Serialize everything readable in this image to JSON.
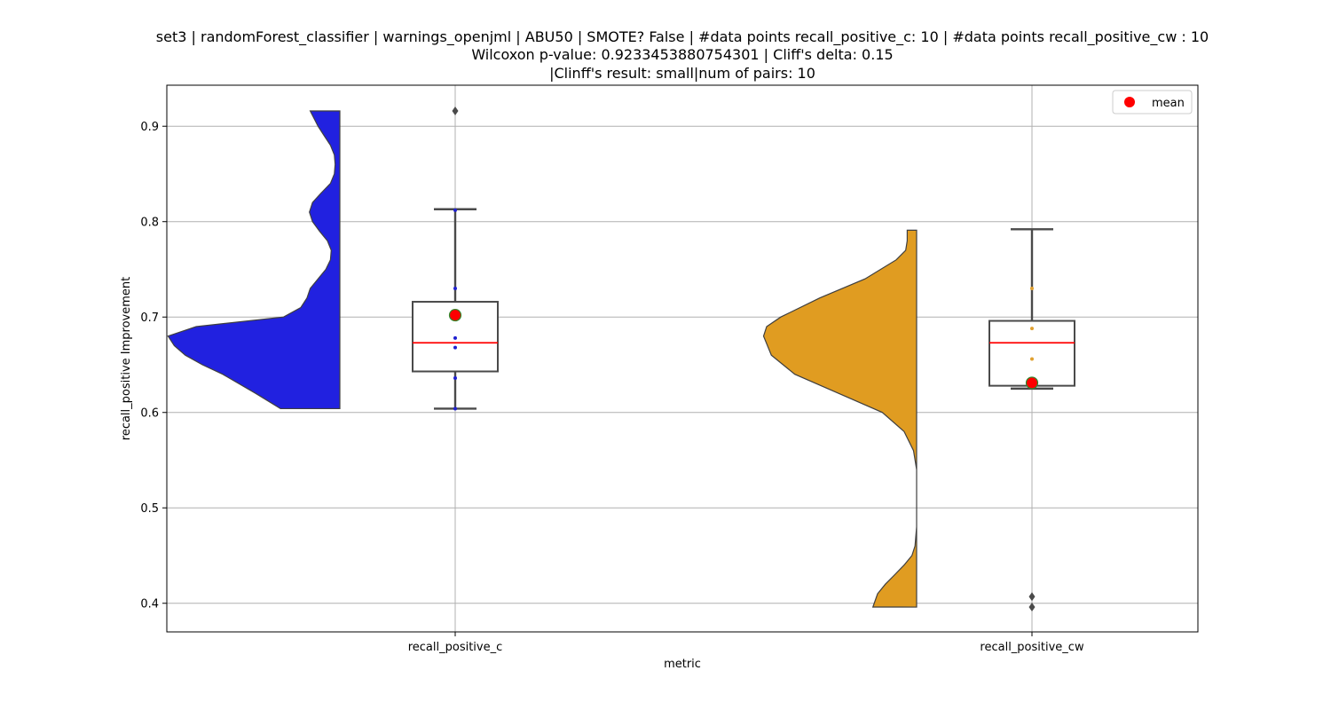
{
  "chart_data": {
    "type": "violin-box",
    "title_lines": [
      "set3 | randomForest_classifier | warnings_openjml | ABU50 | SMOTE? False | #data points recall_positive_c: 10 | #data points recall_positive_cw : 10",
      "Wilcoxon p-value: 0.9233453880754301 | Cliff's delta: 0.15",
      "|Clinff's result: small|num of pairs: 10"
    ],
    "xlabel": "metric",
    "ylabel": "recall_positive Improvement",
    "categories": [
      "recall_positive_c",
      "recall_positive_cw"
    ],
    "ylim": [
      0.37,
      0.943
    ],
    "yticks": [
      0.4,
      0.5,
      0.6,
      0.7,
      0.8,
      0.9
    ],
    "grid": true,
    "legend": {
      "position": "top-right",
      "entries": [
        {
          "label": "mean",
          "color": "#ff0000"
        }
      ]
    },
    "series": [
      {
        "category": "recall_positive_c",
        "violin_color": "#2121e0",
        "point_color": "#2020d0",
        "violin_min": 0.604,
        "violin_max": 0.916,
        "violin_profile": [
          [
            0.604,
            0.38
          ],
          [
            0.62,
            0.54
          ],
          [
            0.64,
            0.75
          ],
          [
            0.65,
            0.88
          ],
          [
            0.66,
            0.99
          ],
          [
            0.67,
            1.06
          ],
          [
            0.68,
            1.1
          ],
          [
            0.69,
            0.92
          ],
          [
            0.7,
            0.36
          ],
          [
            0.71,
            0.25
          ],
          [
            0.72,
            0.21
          ],
          [
            0.73,
            0.19
          ],
          [
            0.74,
            0.14
          ],
          [
            0.75,
            0.09
          ],
          [
            0.76,
            0.06
          ],
          [
            0.77,
            0.055
          ],
          [
            0.78,
            0.08
          ],
          [
            0.79,
            0.13
          ],
          [
            0.8,
            0.175
          ],
          [
            0.81,
            0.195
          ],
          [
            0.82,
            0.175
          ],
          [
            0.83,
            0.12
          ],
          [
            0.84,
            0.06
          ],
          [
            0.85,
            0.035
          ],
          [
            0.86,
            0.03
          ],
          [
            0.87,
            0.035
          ],
          [
            0.88,
            0.06
          ],
          [
            0.89,
            0.1
          ],
          [
            0.9,
            0.14
          ],
          [
            0.916,
            0.19
          ]
        ],
        "box": {
          "q1": 0.643,
          "median": 0.673,
          "q3": 0.716,
          "whisker_low": 0.604,
          "whisker_high": 0.813
        },
        "mean": 0.702,
        "outliers": [
          0.916
        ],
        "points": [
          0.604,
          0.636,
          0.668,
          0.678,
          0.702,
          0.73,
          0.812
        ]
      },
      {
        "category": "recall_positive_cw",
        "violin_color": "#e09c21",
        "point_color": "#e0a030",
        "violin_min": 0.396,
        "violin_max": 0.791,
        "violin_profile": [
          [
            0.396,
            0.28
          ],
          [
            0.41,
            0.25
          ],
          [
            0.42,
            0.2
          ],
          [
            0.43,
            0.14
          ],
          [
            0.44,
            0.08
          ],
          [
            0.45,
            0.03
          ],
          [
            0.46,
            0.01
          ],
          [
            0.48,
            0.0
          ],
          [
            0.5,
            0.0
          ],
          [
            0.52,
            0.0
          ],
          [
            0.54,
            0.0
          ],
          [
            0.56,
            0.02
          ],
          [
            0.58,
            0.08
          ],
          [
            0.6,
            0.22
          ],
          [
            0.62,
            0.5
          ],
          [
            0.64,
            0.78
          ],
          [
            0.66,
            0.93
          ],
          [
            0.68,
            0.98
          ],
          [
            0.69,
            0.96
          ],
          [
            0.7,
            0.87
          ],
          [
            0.72,
            0.62
          ],
          [
            0.74,
            0.33
          ],
          [
            0.76,
            0.13
          ],
          [
            0.77,
            0.07
          ],
          [
            0.78,
            0.06
          ],
          [
            0.791,
            0.06
          ]
        ],
        "box": {
          "q1": 0.628,
          "median": 0.673,
          "q3": 0.696,
          "whisker_low": 0.625,
          "whisker_high": 0.792
        },
        "mean": 0.631,
        "outliers": [
          0.407,
          0.396
        ],
        "points": [
          0.631,
          0.656,
          0.688,
          0.73
        ]
      }
    ]
  }
}
